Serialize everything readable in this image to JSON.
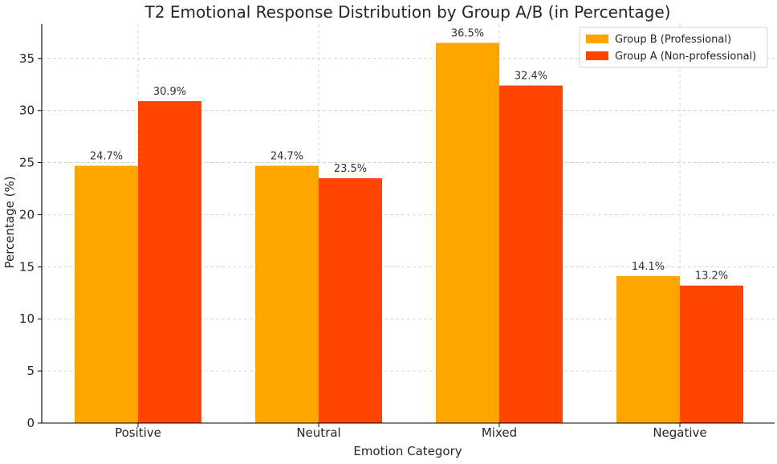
{
  "chart_data": {
    "type": "bar",
    "title": "T2 Emotional Response Distribution by Group A/B (in Percentage)",
    "xlabel": "Emotion Category",
    "ylabel": "Percentage (%)",
    "categories": [
      "Positive",
      "Neutral",
      "Mixed",
      "Negative"
    ],
    "series": [
      {
        "name": "Group B (Professional)",
        "color": "#FFA500",
        "values": [
          24.7,
          24.7,
          36.5,
          14.1
        ],
        "labels": [
          "24.7%",
          "24.7%",
          "36.5%",
          "14.1%"
        ]
      },
      {
        "name": "Group A (Non-professional)",
        "color": "#FF4500",
        "values": [
          30.9,
          23.5,
          32.4,
          13.2
        ],
        "labels": [
          "30.9%",
          "23.5%",
          "32.4%",
          "13.2%"
        ]
      }
    ],
    "ylim": [
      0,
      38.3
    ],
    "yticks": [
      0,
      5,
      10,
      15,
      20,
      25,
      30,
      35
    ],
    "grid": true,
    "legend": "top-right"
  }
}
